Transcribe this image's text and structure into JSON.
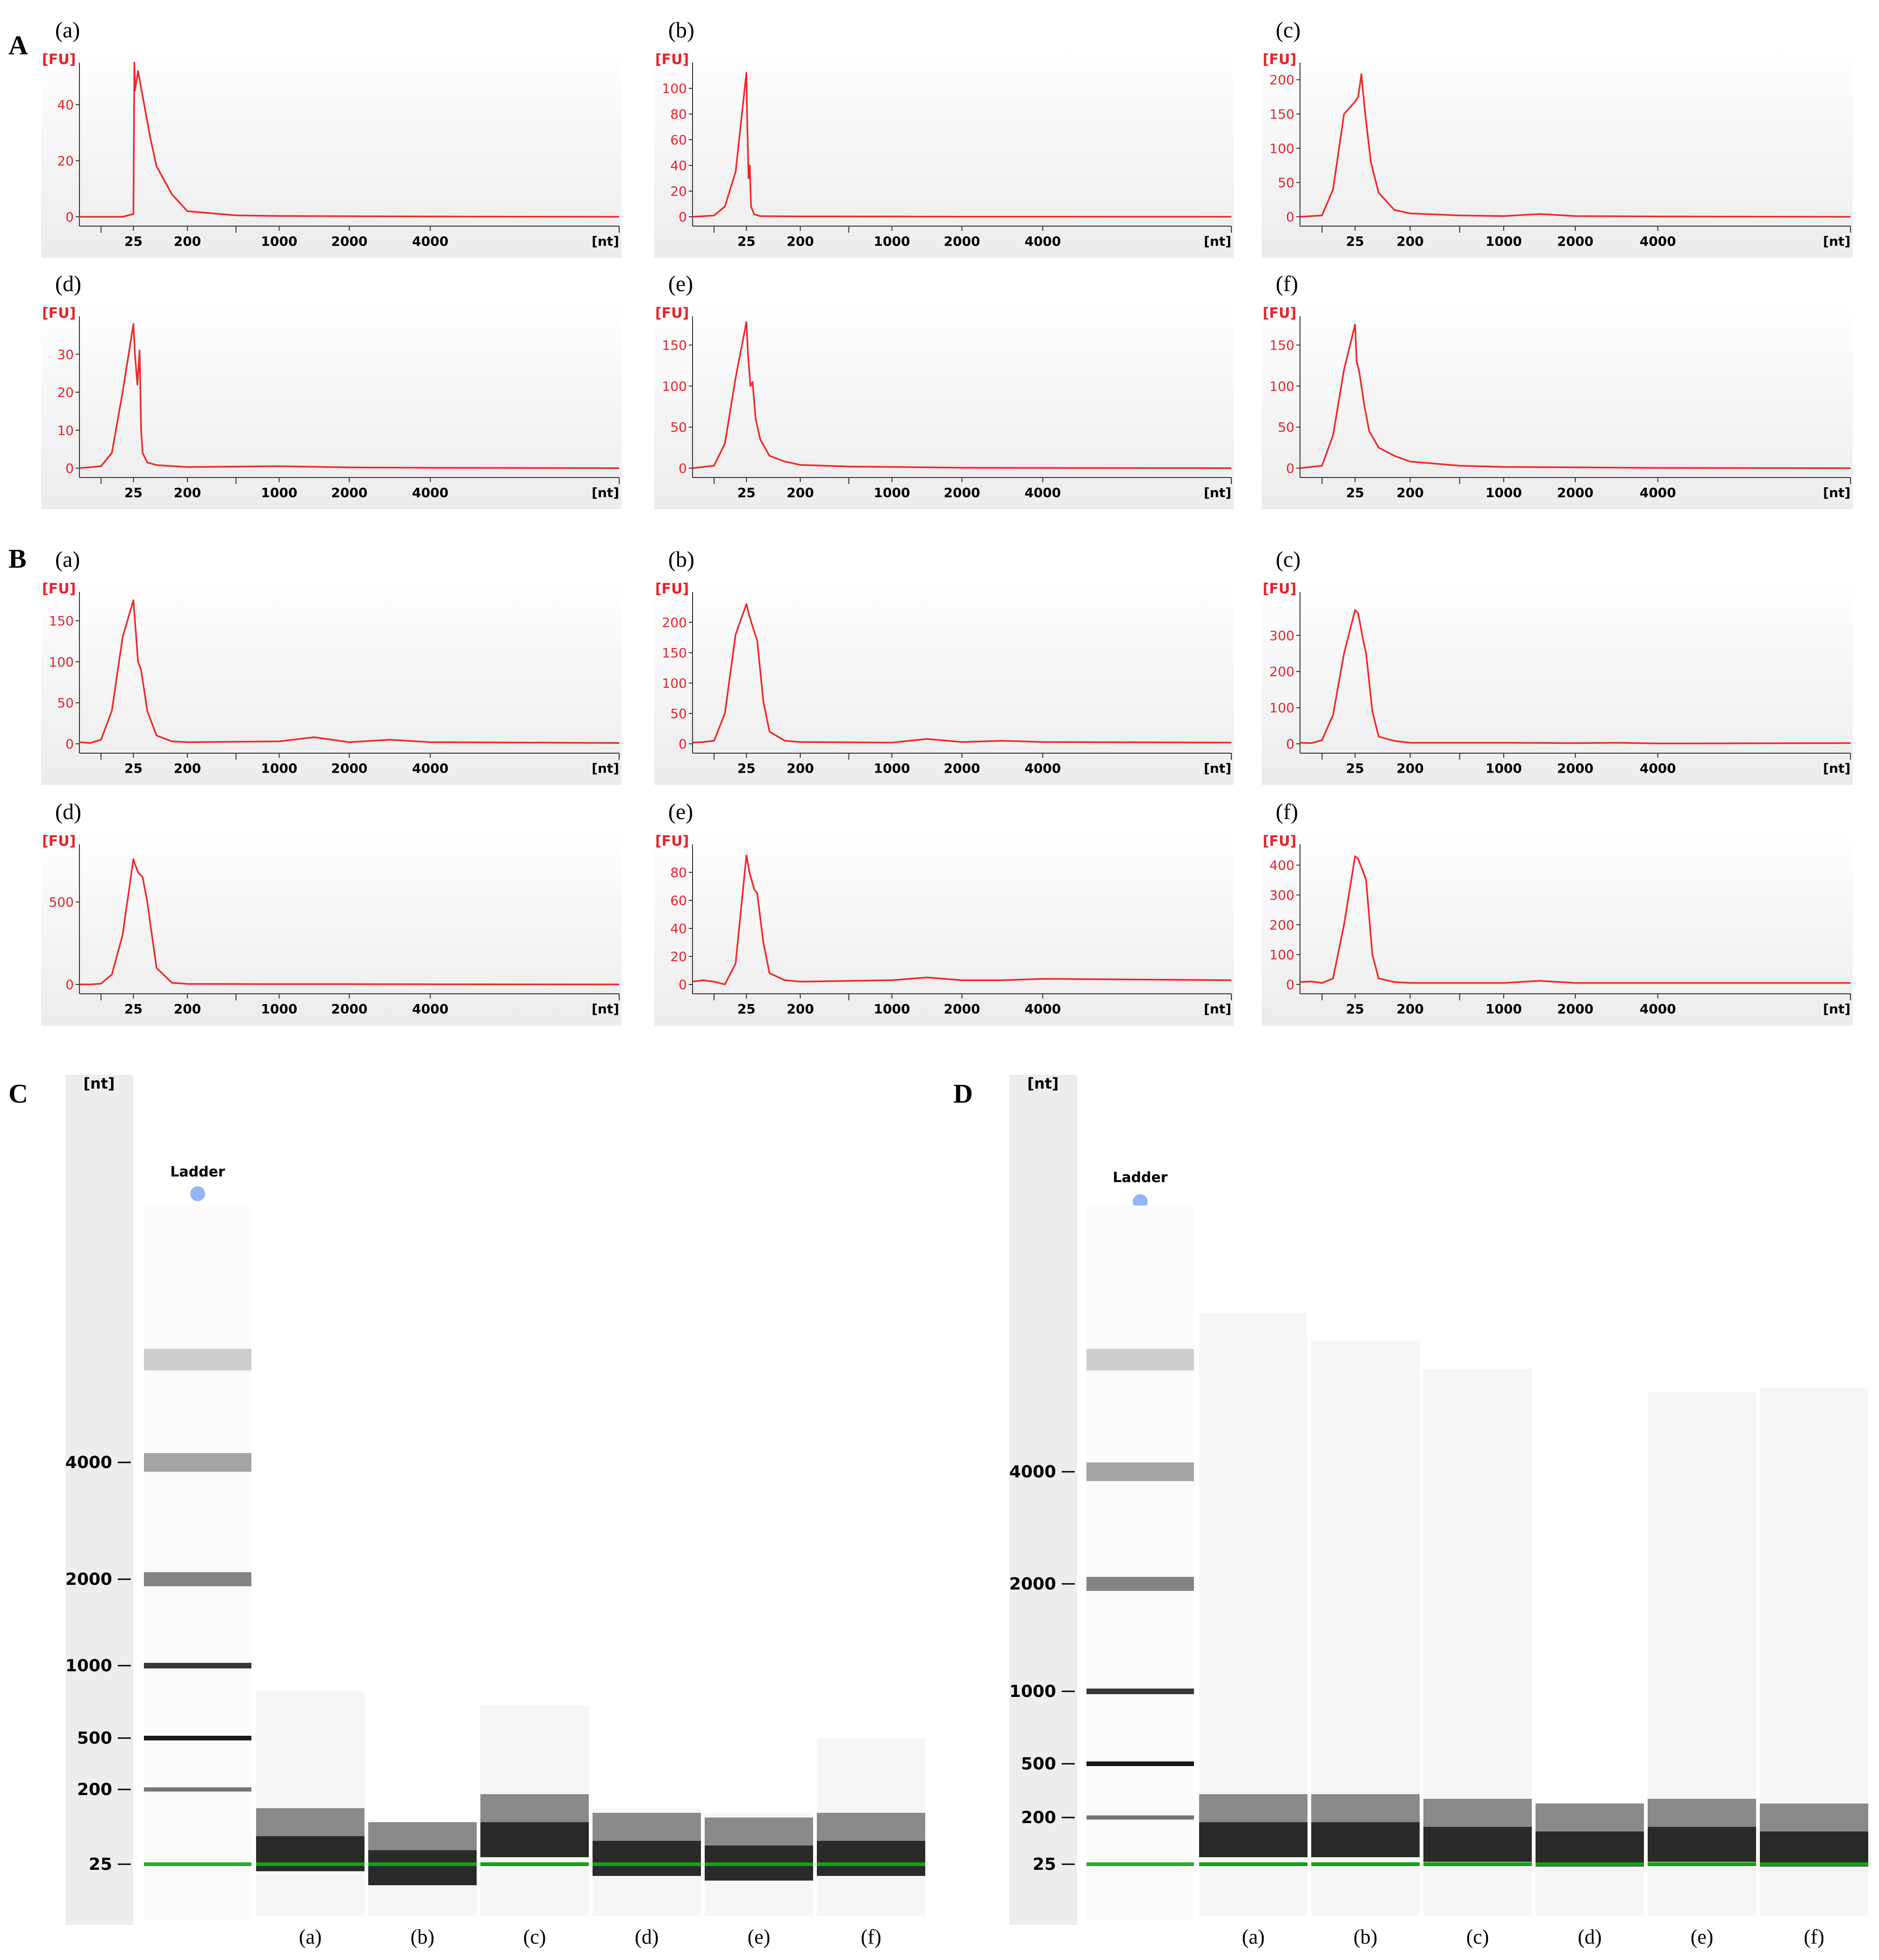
{
  "panel_labels": {
    "A": "A",
    "B": "B",
    "C": "C",
    "D": "D"
  },
  "chart_data": [
    {
      "type": "line",
      "panel": "A",
      "subplot": "(a)",
      "ylabel": "[FU]",
      "xlabel": "[nt]",
      "yticks": [
        0,
        20,
        40
      ],
      "ylim": [
        0,
        55
      ],
      "xticks": [
        "25",
        "200",
        "1000",
        "2000",
        "4000"
      ],
      "x": [
        0,
        20,
        25,
        28,
        30,
        40,
        60,
        80,
        100,
        150,
        200,
        300,
        1000,
        2000,
        4000,
        5000
      ],
      "y": [
        0,
        0,
        1,
        55,
        45,
        52,
        40,
        28,
        18,
        8,
        2,
        0.5,
        0.3,
        0.2,
        0.1,
        0
      ]
    },
    {
      "type": "line",
      "panel": "A",
      "subplot": "(b)",
      "ylabel": "[FU]",
      "xlabel": "[nt]",
      "yticks": [
        0,
        20,
        40,
        60,
        80,
        100
      ],
      "ylim": [
        0,
        120
      ],
      "xticks": [
        "25",
        "200",
        "1000",
        "2000",
        "4000"
      ],
      "x": [
        0,
        10,
        15,
        20,
        25,
        28,
        32,
        36,
        40,
        50,
        70,
        200,
        1000,
        2000,
        4000,
        5000
      ],
      "y": [
        0,
        1,
        8,
        35,
        112,
        70,
        30,
        40,
        8,
        2,
        0.5,
        0.3,
        0.2,
        0.1,
        0.1,
        0
      ]
    },
    {
      "type": "line",
      "panel": "A",
      "subplot": "(c)",
      "ylabel": "[FU]",
      "xlabel": "[nt]",
      "yticks": [
        0,
        50,
        100,
        150,
        200
      ],
      "ylim": [
        0,
        225
      ],
      "xticks": [
        "25",
        "200",
        "1000",
        "2000",
        "4000"
      ],
      "x": [
        0,
        10,
        15,
        20,
        25,
        35,
        45,
        55,
        65,
        75,
        100,
        150,
        200,
        300,
        1000,
        1500,
        2000,
        4000,
        5000
      ],
      "y": [
        0,
        2,
        40,
        150,
        168,
        175,
        208,
        160,
        120,
        80,
        35,
        10,
        5,
        2,
        1,
        4,
        1,
        0.5,
        0
      ]
    },
    {
      "type": "line",
      "panel": "A",
      "subplot": "(d)",
      "ylabel": "[FU]",
      "xlabel": "[nt]",
      "yticks": [
        0,
        10,
        20,
        30
      ],
      "ylim": [
        0,
        40
      ],
      "xticks": [
        "25",
        "200",
        "1000",
        "2000",
        "4000"
      ],
      "x": [
        0,
        10,
        15,
        20,
        25,
        30,
        38,
        45,
        50,
        55,
        70,
        100,
        200,
        1000,
        2000,
        4000,
        5000
      ],
      "y": [
        0,
        0.5,
        4,
        20,
        38,
        30,
        22,
        31,
        10,
        4,
        1.5,
        0.8,
        0.3,
        0.5,
        0.2,
        0.1,
        0
      ]
    },
    {
      "type": "line",
      "panel": "A",
      "subplot": "(e)",
      "ylabel": "[FU]",
      "xlabel": "[nt]",
      "yticks": [
        0,
        50,
        100,
        150
      ],
      "ylim": [
        0,
        185
      ],
      "xticks": [
        "25",
        "200",
        "1000",
        "2000",
        "4000"
      ],
      "x": [
        0,
        10,
        15,
        20,
        25,
        30,
        38,
        45,
        55,
        70,
        100,
        150,
        200,
        300,
        1000,
        2000,
        4000,
        5000
      ],
      "y": [
        0,
        3,
        30,
        110,
        178,
        140,
        100,
        105,
        60,
        35,
        15,
        8,
        4,
        2,
        1.5,
        0.5,
        0.3,
        0
      ]
    },
    {
      "type": "line",
      "panel": "A",
      "subplot": "(f)",
      "ylabel": "[FU]",
      "xlabel": "[nt]",
      "yticks": [
        0,
        50,
        100,
        150
      ],
      "ylim": [
        0,
        185
      ],
      "xticks": [
        "25",
        "200",
        "1000",
        "2000",
        "4000"
      ],
      "x": [
        0,
        10,
        15,
        20,
        25,
        30,
        38,
        45,
        55,
        70,
        100,
        150,
        200,
        300,
        1000,
        2000,
        4000,
        5000
      ],
      "y": [
        0,
        3,
        40,
        120,
        175,
        130,
        118,
        100,
        75,
        45,
        25,
        15,
        8,
        3,
        1.5,
        1,
        0.3,
        0
      ]
    },
    {
      "type": "line",
      "panel": "B",
      "subplot": "(a)",
      "ylabel": "[FU]",
      "xlabel": "[nt]",
      "yticks": [
        0,
        50,
        100,
        150
      ],
      "ylim": [
        0,
        185
      ],
      "xticks": [
        "25",
        "200",
        "1000",
        "2000",
        "4000"
      ],
      "x": [
        0,
        5,
        10,
        15,
        20,
        25,
        30,
        40,
        50,
        70,
        100,
        150,
        200,
        1000,
        1500,
        2000,
        3000,
        4000,
        5000
      ],
      "y": [
        2,
        1,
        5,
        40,
        130,
        175,
        150,
        100,
        90,
        40,
        10,
        3,
        2,
        3,
        8,
        2,
        5,
        2,
        1
      ]
    },
    {
      "type": "line",
      "panel": "B",
      "subplot": "(b)",
      "ylabel": "[FU]",
      "xlabel": "[nt]",
      "yticks": [
        0,
        50,
        100,
        150,
        200
      ],
      "ylim": [
        0,
        250
      ],
      "xticks": [
        "25",
        "200",
        "1000",
        "2000",
        "4000"
      ],
      "x": [
        0,
        5,
        10,
        15,
        20,
        25,
        35,
        50,
        60,
        80,
        100,
        150,
        200,
        1000,
        1500,
        2000,
        3000,
        4000,
        5000
      ],
      "y": [
        2,
        3,
        5,
        50,
        180,
        230,
        210,
        185,
        170,
        70,
        20,
        5,
        3,
        2,
        8,
        3,
        5,
        3,
        2
      ]
    },
    {
      "type": "line",
      "panel": "B",
      "subplot": "(c)",
      "ylabel": "[FU]",
      "xlabel": "[nt]",
      "yticks": [
        0,
        100,
        200,
        300
      ],
      "ylim": [
        0,
        420
      ],
      "xticks": [
        "25",
        "200",
        "1000",
        "2000",
        "4000"
      ],
      "x": [
        0,
        5,
        10,
        15,
        20,
        25,
        35,
        50,
        60,
        80,
        100,
        150,
        200,
        1000,
        2000,
        3000,
        4000,
        5000
      ],
      "y": [
        3,
        2,
        10,
        80,
        250,
        370,
        360,
        290,
        250,
        90,
        20,
        8,
        3,
        3,
        2,
        3,
        1,
        2
      ]
    },
    {
      "type": "line",
      "panel": "B",
      "subplot": "(d)",
      "ylabel": "[FU]",
      "xlabel": "[nt]",
      "yticks": [
        0,
        500
      ],
      "ylim": [
        0,
        850
      ],
      "xticks": [
        "25",
        "200",
        "1000",
        "2000",
        "4000"
      ],
      "x": [
        0,
        5,
        10,
        15,
        20,
        25,
        30,
        40,
        55,
        70,
        100,
        150,
        200,
        1000,
        2000,
        4000,
        5000
      ],
      "y": [
        0,
        0,
        5,
        60,
        300,
        760,
        730,
        680,
        650,
        500,
        100,
        10,
        3,
        2,
        2,
        1,
        0
      ]
    },
    {
      "type": "line",
      "panel": "B",
      "subplot": "(e)",
      "ylabel": "[FU]",
      "xlabel": "[nt]",
      "yticks": [
        0,
        20,
        40,
        60,
        80
      ],
      "ylim": [
        0,
        100
      ],
      "xticks": [
        "25",
        "200",
        "1000",
        "2000",
        "4000"
      ],
      "x": [
        0,
        5,
        10,
        15,
        20,
        25,
        35,
        50,
        60,
        80,
        100,
        150,
        200,
        1000,
        1500,
        2000,
        3000,
        4000,
        5000
      ],
      "y": [
        2,
        3,
        2,
        0,
        15,
        92,
        80,
        68,
        65,
        30,
        8,
        3,
        2,
        3,
        5,
        3,
        3,
        4,
        3
      ]
    },
    {
      "type": "line",
      "panel": "B",
      "subplot": "(f)",
      "ylabel": "[FU]",
      "xlabel": "[nt]",
      "yticks": [
        0,
        100,
        200,
        300,
        400
      ],
      "ylim": [
        0,
        470
      ],
      "xticks": [
        "25",
        "200",
        "1000",
        "2000",
        "4000"
      ],
      "x": [
        0,
        5,
        10,
        15,
        20,
        25,
        35,
        50,
        60,
        80,
        100,
        150,
        200,
        1000,
        1500,
        2000,
        4000,
        5000
      ],
      "y": [
        8,
        10,
        5,
        20,
        200,
        430,
        420,
        380,
        350,
        100,
        20,
        8,
        5,
        5,
        12,
        5,
        5,
        5
      ]
    },
    {
      "type": "gel",
      "panel": "C",
      "ylabel": "[nt]",
      "ladder_label": "Ladder",
      "yticks": [
        "4000",
        "2000",
        "1000",
        "500",
        "200",
        "25"
      ],
      "lanes": [
        "(a)",
        "(b)",
        "(c)",
        "(d)",
        "(e)",
        "(f)"
      ]
    },
    {
      "type": "gel",
      "panel": "D",
      "ylabel": "[nt]",
      "ladder_label": "Ladder",
      "yticks": [
        "4000",
        "2000",
        "1000",
        "500",
        "200",
        "25"
      ],
      "lanes": [
        "(a)",
        "(b)",
        "(c)",
        "(d)",
        "(e)",
        "(f)"
      ]
    }
  ]
}
